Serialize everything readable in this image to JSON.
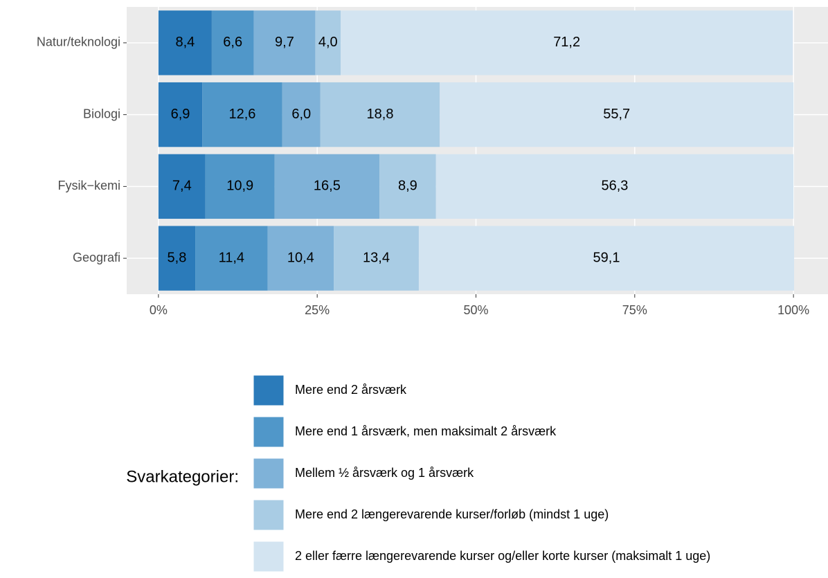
{
  "chart_data": {
    "type": "stacked-barh",
    "categories": [
      "Natur/teknologi",
      "Biologi",
      "Fysik−kemi",
      "Geografi"
    ],
    "series": [
      {
        "name": "Mere end 2 årsværk",
        "color": "#2b7bba",
        "values": [
          8.4,
          6.9,
          7.4,
          5.8
        ],
        "value_labels": [
          "8,4",
          "6,9",
          "7,4",
          "5,8"
        ]
      },
      {
        "name": "Mere end 1 årsværk, men maksimalt 2 årsværk",
        "color": "#5097c9",
        "values": [
          6.6,
          12.6,
          10.9,
          11.4
        ],
        "value_labels": [
          "6,6",
          "12,6",
          "10,9",
          "11,4"
        ]
      },
      {
        "name": "Mellem ½ årsværk og 1 årsværk",
        "color": "#7fb2d8",
        "values": [
          9.7,
          6.0,
          16.5,
          10.4
        ],
        "value_labels": [
          "9,7",
          "6,0",
          "16,5",
          "10,4"
        ]
      },
      {
        "name": "Mere end 2 længerevarende kurser/forløb (mindst 1 uge)",
        "color": "#a9cce4",
        "values": [
          4.0,
          18.8,
          8.9,
          13.4
        ],
        "value_labels": [
          "4,0",
          "18,8",
          "8,9",
          "13,4"
        ]
      },
      {
        "name": "2 eller færre længerevarende kurser og/eller korte kurser (maksimalt 1 uge)",
        "color": "#d3e4f1",
        "values": [
          71.2,
          55.7,
          56.3,
          59.1
        ],
        "value_labels": [
          "71,2",
          "55,7",
          "56,3",
          "59,1"
        ]
      }
    ],
    "xlim": [
      -5,
      105
    ],
    "xticks": [
      {
        "value": 0,
        "label": "0%"
      },
      {
        "value": 25,
        "label": "25%"
      },
      {
        "value": 50,
        "label": "50%"
      },
      {
        "value": 75,
        "label": "75%"
      },
      {
        "value": 100,
        "label": "100%"
      }
    ],
    "legend_title": "Svarkategorier:",
    "legend": "bottom",
    "grid": true
  }
}
